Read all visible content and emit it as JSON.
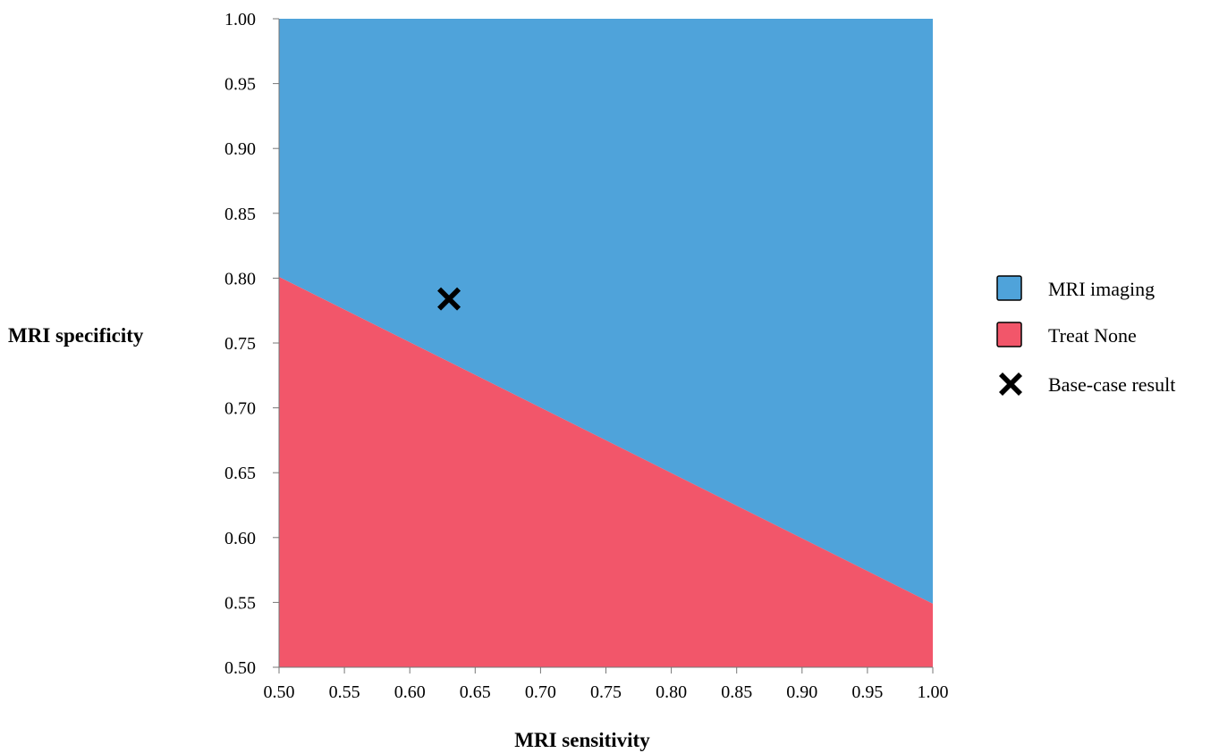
{
  "chart_data": {
    "type": "area",
    "xlabel": "MRI sensitivity",
    "ylabel": "MRI specificity",
    "xlim": [
      0.5,
      1.0
    ],
    "ylim": [
      0.5,
      1.0
    ],
    "x_ticks": [
      "0.50",
      "0.55",
      "0.60",
      "0.65",
      "0.70",
      "0.75",
      "0.80",
      "0.85",
      "0.90",
      "0.95",
      "1.00"
    ],
    "y_ticks": [
      "0.50",
      "0.55",
      "0.60",
      "0.65",
      "0.70",
      "0.75",
      "0.80",
      "0.85",
      "0.90",
      "0.95",
      "1.00"
    ],
    "grid": false,
    "legend_position": "right",
    "threshold_line": {
      "x": [
        0.5,
        1.0
      ],
      "y": [
        0.801,
        0.549
      ]
    },
    "regions": [
      {
        "name": "MRI imaging",
        "color": "#4fa3da",
        "position": "above threshold"
      },
      {
        "name": "Treat None",
        "color": "#f2566a",
        "position": "below threshold"
      }
    ],
    "base_case": {
      "name": "Base-case result",
      "x": 0.63,
      "y": 0.784
    }
  }
}
